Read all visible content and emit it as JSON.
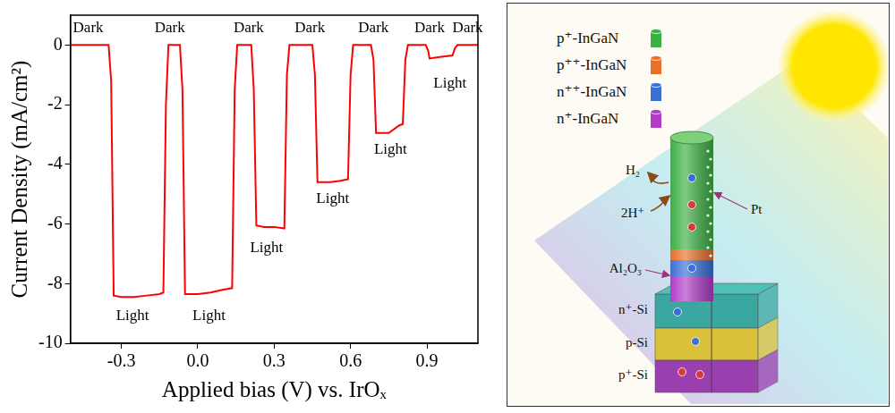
{
  "chart_data": {
    "type": "line",
    "x_label": "Applied bias (V) vs. IrOₓ",
    "y_label": "Current Density (mA/cm²)",
    "color": "#ff0000",
    "grid": false,
    "xlim": [
      -0.5,
      1.1
    ],
    "xticks": [
      -0.3,
      {
        "value": 0,
        "label": "0.0"
      },
      0.3,
      0.6,
      0.9
    ],
    "ylim": [
      -10,
      1
    ],
    "yticks": [
      -10,
      -8,
      -6,
      -4,
      -2,
      0
    ],
    "x": [
      -0.5,
      -0.35,
      -0.34,
      -0.33,
      -0.3,
      -0.25,
      -0.2,
      -0.15,
      -0.135,
      -0.125,
      -0.115,
      -0.07,
      -0.06,
      -0.05,
      0,
      0.05,
      0.1,
      0.135,
      0.145,
      0.155,
      0.21,
      0.22,
      0.23,
      0.26,
      0.3,
      0.34,
      0.35,
      0.36,
      0.45,
      0.46,
      0.47,
      0.52,
      0.56,
      0.59,
      0.6,
      0.61,
      0.68,
      0.69,
      0.7,
      0.75,
      0.79,
      0.805,
      0.815,
      0.825,
      0.895,
      0.905,
      0.91,
      0.95,
      1.0,
      1.01,
      1.02,
      1.1
    ],
    "values": [
      0,
      0,
      -1.2,
      -8.4,
      -8.45,
      -8.45,
      -8.4,
      -8.35,
      -8.3,
      -2,
      0,
      0,
      -1.5,
      -8.35,
      -8.35,
      -8.3,
      -8.2,
      -8.15,
      -1.5,
      0,
      0,
      -1.5,
      -6.05,
      -6.1,
      -6.1,
      -6.15,
      -1,
      0,
      0,
      -1,
      -4.6,
      -4.6,
      -4.55,
      -4.5,
      -1,
      0,
      0,
      -0.5,
      -2.95,
      -2.95,
      -2.7,
      -2.65,
      -0.5,
      0,
      0,
      -0.2,
      -0.45,
      -0.4,
      -0.35,
      -0.1,
      0,
      0
    ],
    "annotations": [
      {
        "text": "Dark",
        "x": -0.43,
        "y": 0.55
      },
      {
        "text": "Dark",
        "x": -0.11,
        "y": 0.55
      },
      {
        "text": "Dark",
        "x": 0.2,
        "y": 0.55
      },
      {
        "text": "Dark",
        "x": 0.44,
        "y": 0.55
      },
      {
        "text": "Dark",
        "x": 0.69,
        "y": 0.55
      },
      {
        "text": "Dark",
        "x": 0.91,
        "y": 0.55
      },
      {
        "text": "Dark",
        "x": 1.06,
        "y": 0.55
      },
      {
        "text": "Light",
        "x": -0.256,
        "y": -9.1
      },
      {
        "text": "Light",
        "x": 0.044,
        "y": -9.1
      },
      {
        "text": "Light",
        "x": 0.27,
        "y": -6.8
      },
      {
        "text": "Light",
        "x": 0.53,
        "y": -5.15
      },
      {
        "text": "Light",
        "x": 0.757,
        "y": -3.5
      },
      {
        "text": "Light",
        "x": 0.99,
        "y": -1.3
      }
    ]
  },
  "diagram": {
    "legend": [
      {
        "label": "p⁺-InGaN",
        "color": "#3cb043"
      },
      {
        "label": "p⁺⁺-InGaN",
        "color": "#e8702a"
      },
      {
        "label": "n⁺⁺-InGaN",
        "color": "#3a6fd8"
      },
      {
        "label": "n⁺-InGaN",
        "color": "#b03cc8"
      }
    ],
    "labels": {
      "h2": "H₂",
      "proton": "2H⁺",
      "pt": "Pt",
      "oxide": "Al₂O₃"
    },
    "substrate": [
      {
        "label": "n⁺-Si",
        "color": "#3aa8a0"
      },
      {
        "label": "p-Si",
        "color": "#d9c23a"
      },
      {
        "label": "p⁺-Si",
        "color": "#9a3fb0"
      }
    ]
  }
}
